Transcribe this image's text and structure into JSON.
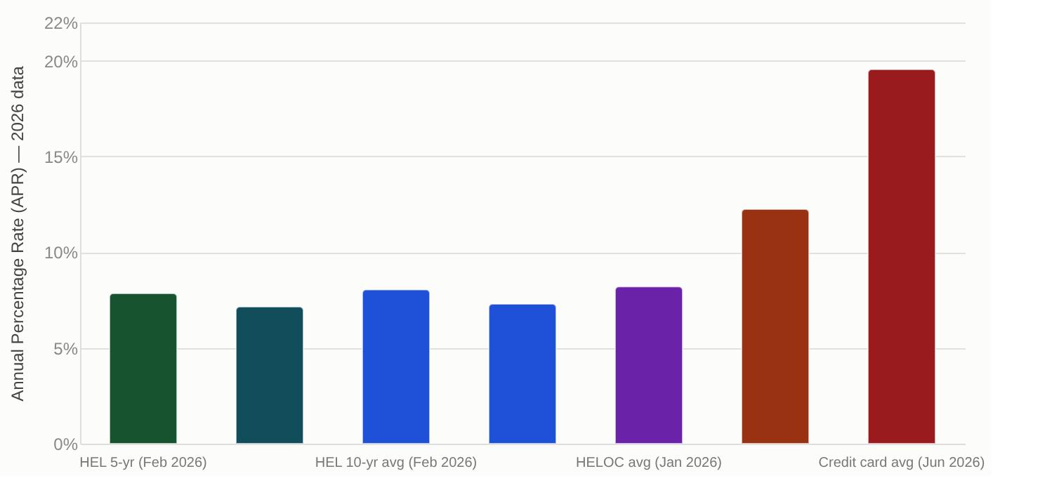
{
  "chart_data": {
    "type": "bar",
    "ylabel": "Annual Percentage Rate (APR) — 2026 data",
    "categories": [
      "HEL 5-yr (Feb 2026)",
      null,
      "HEL 10-yr avg (Feb 2026)",
      null,
      "HELOC avg (Jan 2026)",
      null,
      "Credit card avg (Jun 2026)"
    ],
    "values": [
      7.85,
      7.15,
      8.05,
      7.3,
      8.2,
      12.25,
      19.55
    ],
    "colors": [
      "#16532e",
      "#124d5c",
      "#1e50d8",
      "#1e50d8",
      "#6a22a8",
      "#993213",
      "#991b1e"
    ],
    "ylim": [
      0,
      22
    ],
    "yticks": [
      {
        "value": 0,
        "label": "0%"
      },
      {
        "value": 5,
        "label": "5%"
      },
      {
        "value": 10,
        "label": "10%"
      },
      {
        "value": 15,
        "label": "15%"
      },
      {
        "value": 20,
        "label": "20%"
      },
      {
        "value": 22,
        "label": "22%"
      }
    ],
    "grid": "y"
  }
}
